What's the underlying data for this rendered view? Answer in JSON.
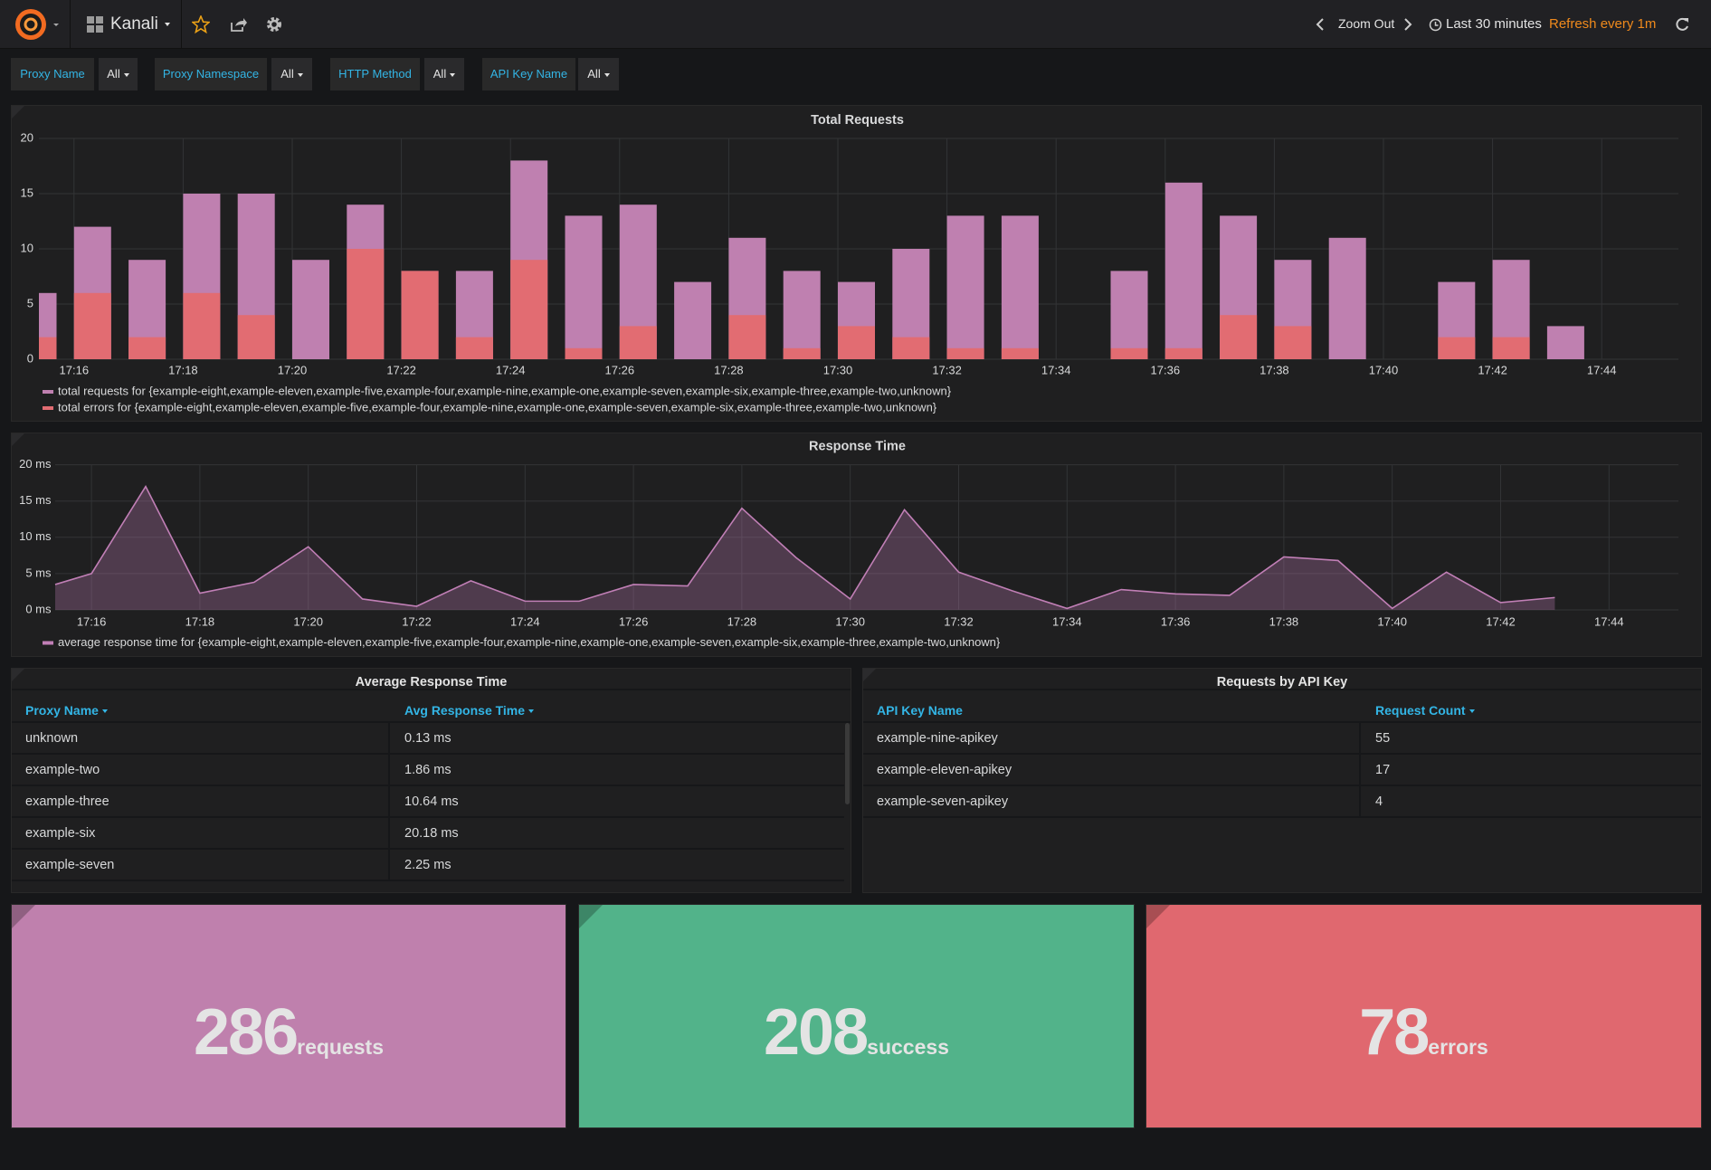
{
  "header": {
    "dashboard": "Kanali",
    "zoom_out": "Zoom Out",
    "time_range": "Last 30 minutes",
    "refresh": "Refresh every 1m"
  },
  "filters": [
    {
      "label": "Proxy Name",
      "value": "All"
    },
    {
      "label": "Proxy Namespace",
      "value": "All"
    },
    {
      "label": "HTTP Method",
      "value": "All"
    },
    {
      "label": "API Key Name",
      "value": "All"
    }
  ],
  "chart_data": [
    {
      "type": "bar",
      "title": "Total Requests",
      "categories": [
        null,
        "17:16",
        null,
        "17:18",
        null,
        "17:20",
        null,
        "17:22",
        null,
        "17:24",
        null,
        "17:26",
        null,
        "17:28",
        null,
        "17:30",
        null,
        "17:32",
        null,
        "17:34",
        null,
        "17:36",
        null,
        "17:38",
        null,
        "17:40",
        null,
        "17:42",
        null,
        "17:44"
      ],
      "series": [
        {
          "name": "total requests for {example-eight,example-eleven,example-five,example-four,example-nine,example-one,example-seven,example-six,example-three,example-two,unknown}",
          "color": "#bf80b0",
          "values": [
            6,
            12,
            9,
            15,
            15,
            9,
            14,
            8,
            8,
            18,
            13,
            14,
            7,
            11,
            8,
            7,
            10,
            13,
            13,
            null,
            8,
            16,
            13,
            9,
            11,
            null,
            7,
            9,
            3,
            null
          ]
        },
        {
          "name": "total errors for {example-eight,example-eleven,example-five,example-four,example-nine,example-one,example-seven,example-six,example-three,example-two,unknown}",
          "color": "#e26c72",
          "values": [
            2,
            6,
            2,
            6,
            4,
            0,
            10,
            8,
            2,
            9,
            1,
            3,
            0,
            4,
            1,
            3,
            2,
            1,
            1,
            null,
            1,
            1,
            4,
            3,
            0,
            null,
            2,
            2,
            0,
            null
          ]
        }
      ],
      "ylim": [
        0,
        20
      ],
      "yticks": [
        0,
        5,
        10,
        15,
        20
      ],
      "grid": true
    },
    {
      "type": "line",
      "title": "Response Time",
      "categories": [
        null,
        "17:16",
        null,
        "17:18",
        null,
        "17:20",
        null,
        "17:22",
        null,
        "17:24",
        null,
        "17:26",
        null,
        "17:28",
        null,
        "17:30",
        null,
        "17:32",
        null,
        "17:34",
        null,
        "17:36",
        null,
        "17:38",
        null,
        "17:40",
        null,
        "17:42",
        null,
        "17:44"
      ],
      "series": [
        {
          "name": "average response time for {example-eight,example-eleven,example-five,example-four,example-nine,example-one,example-seven,example-six,example-three,example-two,unknown}",
          "color": "#c17fb6",
          "values": [
            3.5,
            5,
            17,
            2.3,
            3.8,
            8.7,
            1.5,
            0.5,
            4,
            1.2,
            1.2,
            3.5,
            3.3,
            14,
            7.2,
            1.5,
            13.8,
            5.2,
            2.6,
            0.2,
            2.8,
            2.2,
            2,
            7.3,
            6.8,
            0.2,
            5.2,
            1,
            1.7,
            null
          ]
        }
      ],
      "ylim": [
        0,
        20
      ],
      "yticks": [
        {
          "value": 0,
          "label": "0 ms"
        },
        {
          "value": 5,
          "label": "5 ms"
        },
        {
          "value": 10,
          "label": "10 ms"
        },
        {
          "value": 15,
          "label": "15 ms"
        },
        {
          "value": 20,
          "label": "20 ms"
        }
      ],
      "grid": true,
      "fill": true
    }
  ],
  "tables": [
    {
      "title": "Average Response Time",
      "columns": [
        "Proxy Name",
        "Avg Response Time"
      ],
      "rows": [
        [
          "unknown",
          "0.13 ms"
        ],
        [
          "example-two",
          "1.86 ms"
        ],
        [
          "example-three",
          "10.64 ms"
        ],
        [
          "example-six",
          "20.18 ms"
        ],
        [
          "example-seven",
          "2.25 ms"
        ]
      ]
    },
    {
      "title": "Requests by API Key",
      "columns": [
        "API Key Name",
        "Request Count"
      ],
      "rows": [
        [
          "example-nine-apikey",
          55
        ],
        [
          "example-eleven-apikey",
          17
        ],
        [
          "example-seven-apikey",
          4
        ]
      ]
    }
  ],
  "stats": [
    {
      "value": 286,
      "unit": "requests",
      "color": "#bf80ad"
    },
    {
      "value": 208,
      "unit": "success",
      "color": "#52b38a"
    },
    {
      "value": 78,
      "unit": "errors",
      "color": "#e0686f"
    }
  ]
}
